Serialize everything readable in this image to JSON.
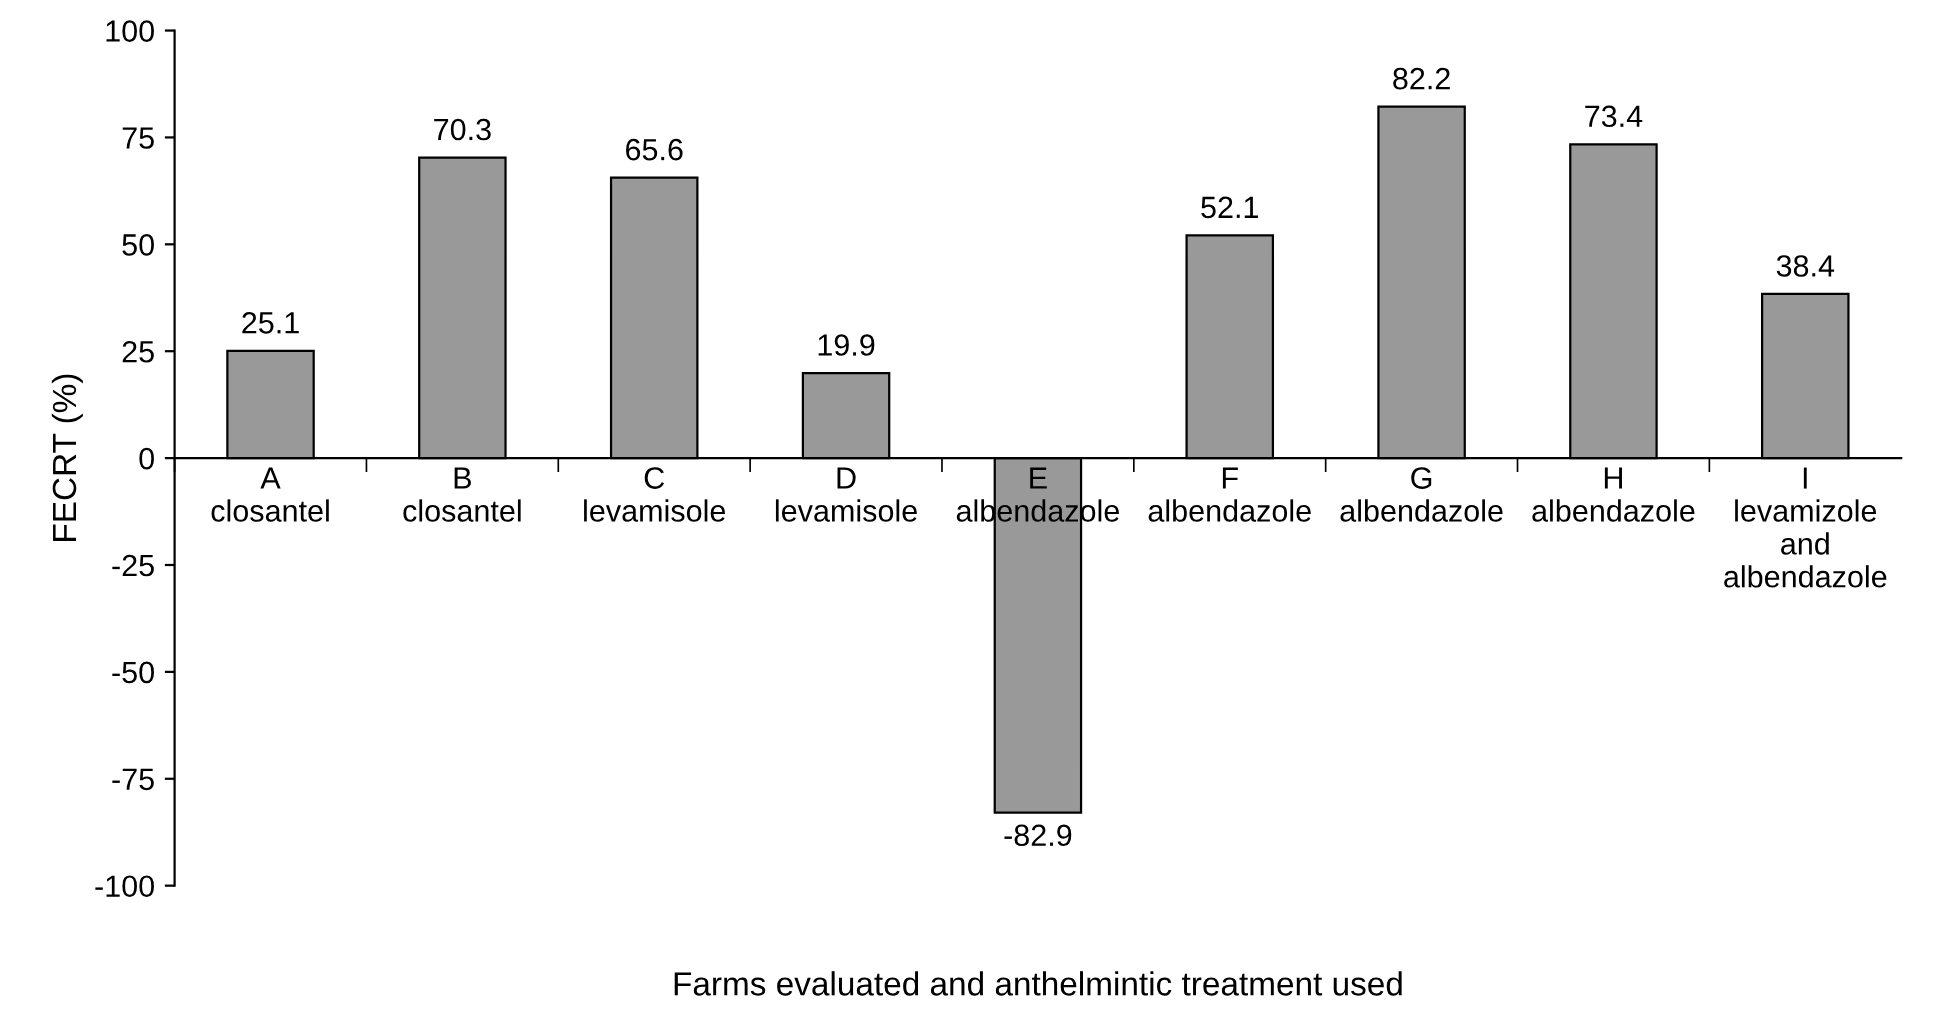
{
  "chart_data": {
    "type": "bar",
    "xlabel": "Farms evaluated and anthelmintic treatment used",
    "ylabel": "FECRT (%)",
    "categories": [
      "A\nclosantel",
      "B\nclosantel",
      "C\nlevamisole",
      "D\nlevamisole",
      "E\nalbendazole",
      "F\nalbendazole",
      "G\nalbendazole",
      "H\nalbendazole",
      "I\nlevamizole\nand\nalbendazole"
    ],
    "values": [
      25.1,
      70.3,
      65.6,
      19.9,
      -82.9,
      52.1,
      82.2,
      73.4,
      38.4
    ],
    "color": "#999999",
    "ylim": [
      -100,
      100
    ],
    "yticks": [
      -100,
      -75,
      -50,
      -25,
      0,
      25,
      50,
      75,
      100
    ],
    "data_labels": true,
    "grid": false,
    "legend": false
  }
}
